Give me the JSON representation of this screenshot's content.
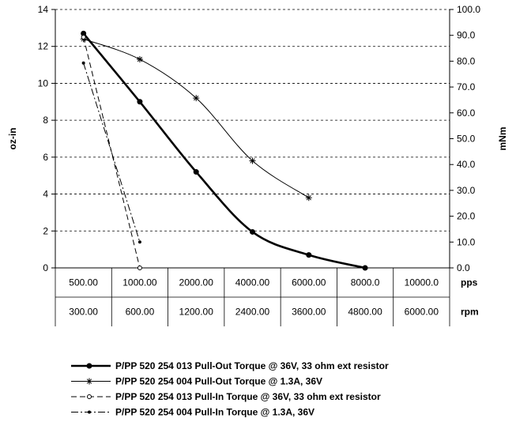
{
  "chart_data": {
    "type": "line",
    "ylabel_left": "oz-in",
    "ylabel_right": "mNm",
    "ylim_left": [
      0,
      14
    ],
    "yticks_left": [
      "0",
      "2",
      "4",
      "6",
      "8",
      "10",
      "12",
      "14"
    ],
    "ylim_right": [
      0,
      100
    ],
    "yticks_right": [
      "0.0",
      "10.0",
      "20.0",
      "30.0",
      "40.0",
      "50.0",
      "60.0",
      "70.0",
      "80.0",
      "90.0",
      "100.0"
    ],
    "grid": "horizontal dashed",
    "legend_position": "bottom",
    "x_rows": [
      {
        "unit": "pps",
        "values": [
          "500.00",
          "1000.00",
          "2000.00",
          "4000.00",
          "6000.00",
          "8000.0",
          "10000.0"
        ]
      },
      {
        "unit": "rpm",
        "values": [
          "300.00",
          "600.00",
          "1200.00",
          "2400.00",
          "3600.00",
          "4800.00",
          "6000.00"
        ]
      }
    ],
    "categories": [
      "500.00",
      "1000.00",
      "2000.00",
      "4000.00",
      "6000.00",
      "8000.0",
      "10000.0"
    ],
    "series": [
      {
        "name": "P/PP 520 254 013 Pull-Out Torque @ 36V, 33 ohm ext resistor",
        "style": "thick-solid-dot",
        "color": "#000000",
        "values": [
          12.7,
          9.0,
          5.2,
          1.95,
          0.7,
          0.0,
          null
        ]
      },
      {
        "name": "P/PP 520 254 004 Pull-Out Torque @ 1.3A, 36V",
        "style": "thin-solid-star",
        "color": "#000000",
        "values": [
          12.4,
          11.3,
          9.2,
          5.8,
          3.8,
          null,
          null
        ]
      },
      {
        "name": "P/PP 520 254 013 Pull-In Torque @ 36V, 33 ohm ext resistor",
        "style": "dashed-open-circle",
        "color": "#000000",
        "values": [
          12.5,
          0.0,
          null,
          null,
          null,
          null,
          null
        ]
      },
      {
        "name": "P/PP 520 254 004 Pull-In Torque @ 1.3A, 36V",
        "style": "dashdot-dot",
        "color": "#000000",
        "values": [
          11.1,
          1.4,
          null,
          null,
          null,
          null,
          null
        ]
      }
    ]
  }
}
